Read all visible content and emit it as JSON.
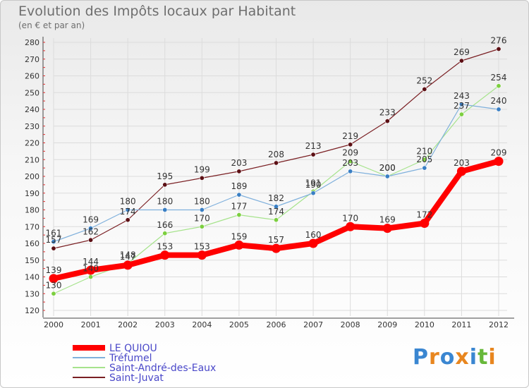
{
  "title": "Evolution des Impôts locaux par Habitant",
  "subtitle": "(en € et par an)",
  "logo": {
    "text": "Proxiti",
    "colors": [
      "#3a86d1",
      "#e8861f",
      "#3a86d1",
      "#e8861f",
      "#3a86d1",
      "#68b83a",
      "#e8861f"
    ]
  },
  "chart_data": {
    "type": "line",
    "categories": [
      "2000",
      "2001",
      "2002",
      "2003",
      "2004",
      "2005",
      "2006",
      "2007",
      "2008",
      "2009",
      "2010",
      "2011",
      "2012"
    ],
    "ylim": [
      120,
      280
    ],
    "yticks": [
      120,
      130,
      140,
      150,
      160,
      170,
      180,
      190,
      200,
      210,
      220,
      230,
      240,
      250,
      260,
      270,
      280
    ],
    "grid": true,
    "legend_position": "bottom-left",
    "series": [
      {
        "name": "Saint-Juvat",
        "color": "#7a1f23",
        "width": 1.2,
        "marker": "#5c0f14",
        "values": [
          157,
          162,
          174,
          195,
          199,
          203,
          208,
          213,
          219,
          233,
          252,
          269,
          276
        ],
        "labels": [
          "157",
          "162",
          "174",
          "195",
          "199",
          "203",
          "208",
          "213",
          "219",
          "233",
          "252",
          "269",
          "276"
        ]
      },
      {
        "name": "Saint-André-des-Eaux",
        "color": "#a6e38c",
        "width": 1.2,
        "marker": "#7ccf3f",
        "values": [
          130,
          140,
          148,
          166,
          170,
          177,
          174,
          191,
          209,
          200,
          210,
          237,
          254
        ],
        "labels": [
          "130",
          "140",
          "148",
          "166",
          "170",
          "177",
          "174",
          "191",
          "209",
          "200",
          "210",
          "237",
          "254"
        ]
      },
      {
        "name": "Tréfumel",
        "color": "#7fb0dc",
        "width": 1.2,
        "marker": "#3a7fc4",
        "values": [
          161,
          169,
          180,
          180,
          180,
          189,
          182,
          190,
          203,
          200,
          205,
          243,
          240
        ],
        "labels": [
          "161",
          "169",
          "180",
          "180",
          "180",
          "189",
          "182",
          "190",
          "203",
          "200",
          "205",
          "243",
          "240"
        ]
      },
      {
        "name": "LE QUIOU",
        "color": "#ff0000",
        "width": 8,
        "marker": "#ff0000",
        "values": [
          139,
          144,
          147,
          153,
          153,
          159,
          157,
          160,
          170,
          169,
          172,
          203,
          209
        ],
        "labels": [
          "139",
          "144",
          "147",
          "153",
          "153",
          "159",
          "157",
          "160",
          "170",
          "169",
          "172",
          "203",
          "209"
        ]
      }
    ],
    "legend": [
      {
        "name": "LE QUIOU",
        "color": "#ff0000",
        "width": 8
      },
      {
        "name": "Tréfumel",
        "color": "#7fb0dc",
        "width": 2
      },
      {
        "name": "Saint-André-des-Eaux",
        "color": "#a6e38c",
        "width": 2
      },
      {
        "name": "Saint-Juvat",
        "color": "#7a1f23",
        "width": 2
      }
    ]
  }
}
